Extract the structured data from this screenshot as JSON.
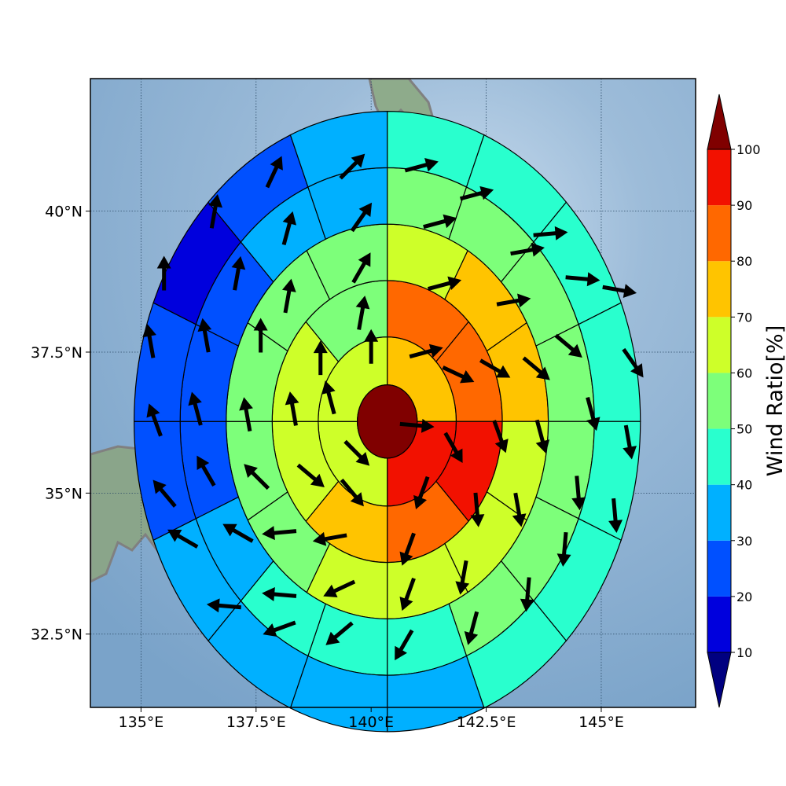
{
  "chart_data": {
    "type": "heatmap",
    "subtype": "polar-sector-map-with-wind-vectors",
    "xlabel": "",
    "ylabel": "",
    "x_ticks": [
      {
        "value": 135.0,
        "label": "135°E"
      },
      {
        "value": 137.5,
        "label": "137.5°E"
      },
      {
        "value": 140.0,
        "label": "140°E"
      },
      {
        "value": 142.5,
        "label": "142.5°E"
      },
      {
        "value": 145.0,
        "label": "145°E"
      }
    ],
    "y_ticks": [
      {
        "value": 32.5,
        "label": "32.5°N"
      },
      {
        "value": 35.0,
        "label": "35°N"
      },
      {
        "value": 37.5,
        "label": "37.5°N"
      },
      {
        "value": 40.0,
        "label": "40°N"
      }
    ],
    "xlim": [
      133.9,
      147.05
    ],
    "ylim": [
      31.2,
      42.35
    ],
    "grid": true,
    "center": {
      "lon": 140.35,
      "lat": 36.27
    },
    "ring_radii_deg": [
      0.65,
      1.5,
      2.5,
      3.5,
      4.5,
      5.5
    ],
    "center_value": 100,
    "rings": [
      {
        "start_deg": 90,
        "values": [
          75,
          95,
          65,
          65
        ]
      },
      {
        "start_deg": 90,
        "values": [
          85,
          85,
          95,
          85,
          75,
          65,
          65,
          55
        ]
      },
      {
        "start_deg": 90,
        "values": [
          65,
          75,
          75,
          65,
          65,
          65,
          65,
          55,
          55,
          55,
          55,
          55
        ]
      },
      {
        "start_deg": 90,
        "values": [
          55,
          55,
          55,
          55,
          55,
          55,
          55,
          45,
          45,
          45,
          35,
          25,
          25,
          25,
          35,
          35
        ]
      },
      {
        "start_deg": 90,
        "values": [
          45,
          45,
          45,
          45,
          45,
          45,
          45,
          35,
          35,
          35,
          35,
          25,
          25,
          15,
          25,
          35
        ]
      }
    ],
    "wind_vectors": [
      {
        "lon": 140.0,
        "lat": 37.6,
        "dir": 0
      },
      {
        "lon": 139.1,
        "lat": 36.7,
        "dir": -15
      },
      {
        "lon": 139.7,
        "lat": 35.7,
        "dir": 135
      },
      {
        "lon": 141.0,
        "lat": 36.2,
        "dir": 95
      },
      {
        "lon": 139.8,
        "lat": 38.2,
        "dir": 10
      },
      {
        "lon": 138.9,
        "lat": 37.4,
        "dir": 0
      },
      {
        "lon": 138.3,
        "lat": 36.5,
        "dir": -10
      },
      {
        "lon": 138.7,
        "lat": 35.3,
        "dir": 130
      },
      {
        "lon": 139.6,
        "lat": 35.0,
        "dir": 140
      },
      {
        "lon": 141.1,
        "lat": 35.0,
        "dir": -160
      },
      {
        "lon": 141.8,
        "lat": 35.8,
        "dir": 150
      },
      {
        "lon": 141.9,
        "lat": 37.1,
        "dir": 115
      },
      {
        "lon": 141.2,
        "lat": 37.5,
        "dir": 75
      },
      {
        "lon": 139.8,
        "lat": 39.0,
        "dir": 30
      },
      {
        "lon": 138.2,
        "lat": 38.5,
        "dir": 10
      },
      {
        "lon": 137.6,
        "lat": 37.8,
        "dir": 0
      },
      {
        "lon": 137.3,
        "lat": 36.4,
        "dir": -10
      },
      {
        "lon": 137.5,
        "lat": 35.3,
        "dir": -45
      },
      {
        "lon": 138.0,
        "lat": 34.3,
        "dir": -95
      },
      {
        "lon": 139.1,
        "lat": 34.2,
        "dir": -100
      },
      {
        "lon": 140.8,
        "lat": 34.0,
        "dir": -160
      },
      {
        "lon": 142.3,
        "lat": 34.7,
        "dir": 175
      },
      {
        "lon": 142.8,
        "lat": 36.0,
        "dir": 160
      },
      {
        "lon": 142.7,
        "lat": 37.2,
        "dir": 120
      },
      {
        "lon": 141.6,
        "lat": 38.7,
        "dir": 75
      },
      {
        "lon": 139.8,
        "lat": 39.9,
        "dir": 35
      },
      {
        "lon": 138.2,
        "lat": 39.7,
        "dir": 15
      },
      {
        "lon": 137.1,
        "lat": 38.9,
        "dir": 10
      },
      {
        "lon": 136.4,
        "lat": 37.8,
        "dir": -10
      },
      {
        "lon": 136.2,
        "lat": 36.5,
        "dir": -15
      },
      {
        "lon": 136.4,
        "lat": 35.4,
        "dir": -30
      },
      {
        "lon": 137.1,
        "lat": 34.3,
        "dir": -60
      },
      {
        "lon": 138.0,
        "lat": 33.2,
        "dir": -85
      },
      {
        "lon": 139.3,
        "lat": 33.3,
        "dir": -115
      },
      {
        "lon": 140.8,
        "lat": 33.2,
        "dir": -160
      },
      {
        "lon": 142.0,
        "lat": 33.5,
        "dir": -170
      },
      {
        "lon": 143.2,
        "lat": 34.7,
        "dir": 170
      },
      {
        "lon": 143.7,
        "lat": 36.0,
        "dir": 165
      },
      {
        "lon": 143.6,
        "lat": 37.2,
        "dir": 130
      },
      {
        "lon": 143.1,
        "lat": 38.4,
        "dir": 80
      },
      {
        "lon": 141.5,
        "lat": 39.8,
        "dir": 75
      },
      {
        "lon": 139.6,
        "lat": 40.8,
        "dir": 45
      },
      {
        "lon": 137.9,
        "lat": 40.7,
        "dir": 25
      },
      {
        "lon": 136.6,
        "lat": 40.0,
        "dir": 10
      },
      {
        "lon": 135.5,
        "lat": 38.9,
        "dir": 0
      },
      {
        "lon": 135.2,
        "lat": 37.7,
        "dir": -10
      },
      {
        "lon": 135.3,
        "lat": 36.3,
        "dir": -20
      },
      {
        "lon": 135.5,
        "lat": 35.0,
        "dir": -40
      },
      {
        "lon": 135.9,
        "lat": 34.2,
        "dir": -60
      },
      {
        "lon": 136.8,
        "lat": 33.0,
        "dir": -85
      },
      {
        "lon": 138.0,
        "lat": 32.6,
        "dir": -110
      },
      {
        "lon": 139.3,
        "lat": 32.5,
        "dir": -130
      },
      {
        "lon": 140.7,
        "lat": 32.3,
        "dir": -150
      },
      {
        "lon": 142.2,
        "lat": 32.6,
        "dir": -165
      },
      {
        "lon": 143.4,
        "lat": 33.2,
        "dir": -175
      },
      {
        "lon": 144.2,
        "lat": 34.0,
        "dir": -175
      },
      {
        "lon": 144.5,
        "lat": 35.0,
        "dir": 175
      },
      {
        "lon": 144.8,
        "lat": 36.4,
        "dir": 165
      },
      {
        "lon": 144.3,
        "lat": 37.6,
        "dir": 130
      },
      {
        "lon": 143.4,
        "lat": 39.3,
        "dir": 80
      },
      {
        "lon": 142.3,
        "lat": 40.3,
        "dir": 75
      },
      {
        "lon": 141.1,
        "lat": 40.8,
        "dir": 75
      },
      {
        "lon": 143.9,
        "lat": 39.6,
        "dir": 85
      },
      {
        "lon": 144.6,
        "lat": 38.8,
        "dir": 95
      },
      {
        "lon": 145.4,
        "lat": 38.6,
        "dir": 100
      },
      {
        "lon": 145.7,
        "lat": 37.3,
        "dir": 145
      },
      {
        "lon": 145.6,
        "lat": 35.9,
        "dir": 170
      },
      {
        "lon": 145.3,
        "lat": 34.6,
        "dir": 175
      }
    ],
    "colorbar": {
      "label": "Wind Ratio[%]",
      "ticks": [
        10,
        20,
        30,
        40,
        50,
        60,
        70,
        80,
        90,
        100
      ],
      "bins": [
        {
          "min": 10,
          "max": 20,
          "color": "#0000dd"
        },
        {
          "min": 20,
          "max": 30,
          "color": "#0050ff"
        },
        {
          "min": 30,
          "max": 40,
          "color": "#00b0ff"
        },
        {
          "min": 40,
          "max": 50,
          "color": "#29ffce"
        },
        {
          "min": 50,
          "max": 60,
          "color": "#7dff7a"
        },
        {
          "min": 60,
          "max": 70,
          "color": "#ceff29"
        },
        {
          "min": 70,
          "max": 80,
          "color": "#ffc400"
        },
        {
          "min": 80,
          "max": 90,
          "color": "#ff6800"
        },
        {
          "min": 90,
          "max": 100,
          "color": "#f21100"
        }
      ],
      "under_color": "#000080",
      "over_color": "#800000"
    }
  }
}
